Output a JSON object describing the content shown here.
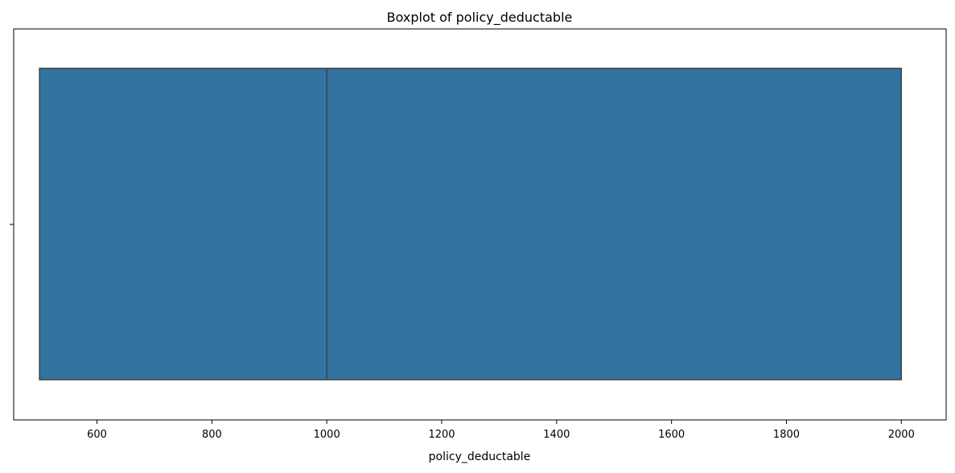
{
  "chart_data": {
    "type": "boxplot",
    "title": "Boxplot of policy_deductable",
    "xlabel": "policy_deductable",
    "ylabel": "",
    "xlim": [
      455,
      2078
    ],
    "xticks": [
      600,
      800,
      1000,
      1200,
      1400,
      1600,
      1800,
      2000
    ],
    "box": {
      "min": 500,
      "q1": 500,
      "median": 1000,
      "q3": 2000,
      "max": 2000
    },
    "colors": {
      "box_fill": "#3274a1",
      "box_edge": "#3f3f3f",
      "axis": "#000000"
    },
    "grid": false
  }
}
